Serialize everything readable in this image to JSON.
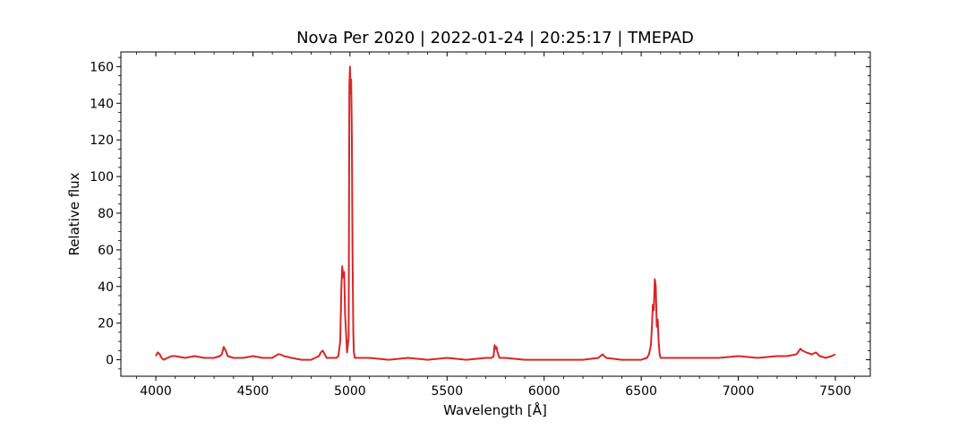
{
  "chart_data": {
    "type": "line",
    "title": "Nova Per 2020 | 2022-01-24 | 20:25:17 | TMEPAD",
    "xlabel": "Wavelength [Å]",
    "ylabel": "Relative flux",
    "xlim": [
      3820,
      7680
    ],
    "ylim": [
      -9,
      168
    ],
    "xticks": [
      4000,
      4500,
      5000,
      5500,
      6000,
      6500,
      7000,
      7500
    ],
    "yticks": [
      0,
      20,
      40,
      60,
      80,
      100,
      120,
      140,
      160
    ],
    "grid": false,
    "line_color": "#d62728",
    "series": [
      {
        "x": [
          4000,
          4010,
          4020,
          4030,
          4040,
          4060,
          4080,
          4100,
          4150,
          4200,
          4250,
          4300,
          4330,
          4340,
          4350,
          4360,
          4370,
          4400,
          4450,
          4500,
          4550,
          4600,
          4630,
          4640,
          4660,
          4700,
          4750,
          4800,
          4840,
          4850,
          4860,
          4870,
          4880,
          4900,
          4930,
          4940,
          4950,
          4956,
          4960,
          4965,
          4970,
          4975,
          4985,
          4993,
          4997,
          5000,
          5003,
          5006,
          5010,
          5013,
          5017,
          5020,
          5025,
          5030,
          5040,
          5100,
          5200,
          5300,
          5400,
          5500,
          5600,
          5700,
          5730,
          5740,
          5745,
          5750,
          5755,
          5760,
          5770,
          5800,
          5900,
          6000,
          6100,
          6200,
          6280,
          6300,
          6320,
          6400,
          6500,
          6530,
          6540,
          6550,
          6556,
          6560,
          6565,
          6570,
          6575,
          6580,
          6585,
          6590,
          6595,
          6600,
          6610,
          6650,
          6700,
          6800,
          6900,
          7000,
          7100,
          7200,
          7250,
          7300,
          7320,
          7330,
          7350,
          7380,
          7400,
          7420,
          7450,
          7480,
          7500
        ],
        "y": [
          2,
          4,
          3,
          1,
          0,
          1,
          2,
          2,
          1,
          2,
          1,
          1,
          2,
          3,
          7,
          5,
          2,
          1,
          1,
          2,
          1,
          1,
          3,
          3,
          2,
          1,
          0,
          0,
          2,
          4,
          5,
          3,
          1,
          1,
          1,
          2,
          10,
          40,
          51,
          45,
          48,
          25,
          4,
          12,
          150,
          160,
          145,
          153,
          120,
          60,
          15,
          4,
          1,
          1,
          1,
          1,
          0,
          1,
          0,
          1,
          0,
          1,
          1,
          2,
          8,
          6,
          7,
          4,
          1,
          1,
          0,
          0,
          0,
          0,
          1,
          3,
          1,
          0,
          0,
          1,
          3,
          8,
          20,
          30,
          27,
          44,
          40,
          18,
          22,
          10,
          3,
          1,
          1,
          1,
          1,
          1,
          1,
          2,
          1,
          2,
          2,
          3,
          6,
          5,
          4,
          3,
          4,
          2,
          1,
          2,
          3
        ]
      }
    ]
  }
}
